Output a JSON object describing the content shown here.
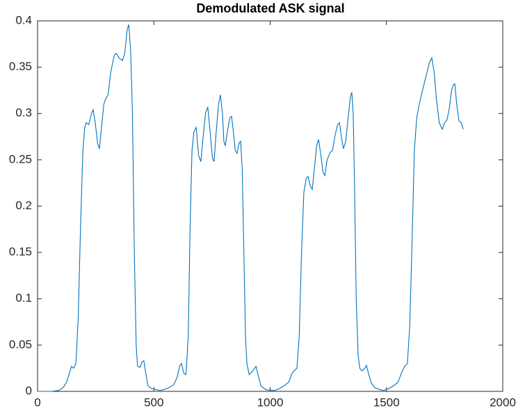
{
  "chart_data": {
    "type": "line",
    "title": "Demodulated ASK signal",
    "x": [
      0,
      60,
      90,
      110,
      125,
      140,
      146,
      155,
      165,
      175,
      185,
      195,
      203,
      209,
      220,
      232,
      239,
      248,
      258,
      266,
      275,
      285,
      293,
      303,
      315,
      330,
      338,
      350,
      365,
      375,
      385,
      392,
      400,
      408,
      416,
      424,
      430,
      440,
      450,
      457,
      465,
      475,
      490,
      510,
      526,
      545,
      565,
      585,
      600,
      612,
      619,
      628,
      638,
      648,
      656,
      664,
      672,
      682,
      692,
      702,
      712,
      722,
      732,
      742,
      752,
      759,
      768,
      778,
      786,
      795,
      801,
      807,
      816,
      826,
      834,
      842,
      850,
      858,
      866,
      873,
      880,
      887,
      894,
      900,
      910,
      925,
      939,
      948,
      960,
      980,
      1000,
      1020,
      1040,
      1060,
      1080,
      1095,
      1106,
      1115,
      1125,
      1135,
      1145,
      1155,
      1163,
      1172,
      1181,
      1192,
      1200,
      1208,
      1218,
      1227,
      1235,
      1245,
      1258,
      1268,
      1278,
      1290,
      1298,
      1306,
      1315,
      1325,
      1335,
      1345,
      1351,
      1357,
      1363,
      1370,
      1378,
      1385,
      1395,
      1407,
      1414,
      1422,
      1435,
      1450,
      1470,
      1489,
      1510,
      1530,
      1550,
      1565,
      1578,
      1590,
      1600,
      1610,
      1620,
      1630,
      1641,
      1655,
      1670,
      1685,
      1695,
      1705,
      1715,
      1727,
      1740,
      1750,
      1760,
      1770,
      1780,
      1788,
      1794,
      1802,
      1812,
      1822,
      1830
    ],
    "series": [
      {
        "name": "signal",
        "color": "#0072bd",
        "values": [
          0,
          0,
          0.001,
          0.004,
          0.01,
          0.022,
          0.027,
          0.025,
          0.03,
          0.08,
          0.18,
          0.26,
          0.285,
          0.29,
          0.288,
          0.3,
          0.304,
          0.29,
          0.268,
          0.262,
          0.285,
          0.31,
          0.316,
          0.32,
          0.345,
          0.363,
          0.365,
          0.36,
          0.357,
          0.365,
          0.39,
          0.396,
          0.37,
          0.3,
          0.15,
          0.05,
          0.027,
          0.026,
          0.032,
          0.033,
          0.02,
          0.006,
          0.003,
          0.002,
          0.001,
          0.002,
          0.004,
          0.007,
          0.015,
          0.028,
          0.03,
          0.02,
          0.018,
          0.06,
          0.18,
          0.26,
          0.28,
          0.285,
          0.255,
          0.248,
          0.275,
          0.3,
          0.307,
          0.28,
          0.252,
          0.248,
          0.28,
          0.31,
          0.32,
          0.3,
          0.27,
          0.265,
          0.28,
          0.295,
          0.297,
          0.28,
          0.26,
          0.257,
          0.268,
          0.27,
          0.24,
          0.15,
          0.06,
          0.03,
          0.018,
          0.022,
          0.027,
          0.018,
          0.006,
          0.002,
          0.001,
          0.001,
          0.003,
          0.006,
          0.01,
          0.02,
          0.023,
          0.025,
          0.06,
          0.15,
          0.215,
          0.23,
          0.232,
          0.222,
          0.218,
          0.245,
          0.265,
          0.272,
          0.255,
          0.237,
          0.233,
          0.25,
          0.258,
          0.26,
          0.275,
          0.288,
          0.29,
          0.275,
          0.262,
          0.27,
          0.295,
          0.318,
          0.323,
          0.3,
          0.22,
          0.1,
          0.04,
          0.025,
          0.022,
          0.025,
          0.028,
          0.02,
          0.009,
          0.004,
          0.002,
          0.001,
          0.003,
          0.006,
          0.01,
          0.02,
          0.027,
          0.03,
          0.07,
          0.16,
          0.26,
          0.295,
          0.31,
          0.325,
          0.34,
          0.355,
          0.36,
          0.345,
          0.315,
          0.29,
          0.283,
          0.29,
          0.293,
          0.305,
          0.325,
          0.331,
          0.332,
          0.31,
          0.292,
          0.29,
          0.283
        ]
      }
    ],
    "xlim": [
      0,
      2000
    ],
    "xticks": [
      0,
      500,
      1000,
      1500,
      2000
    ],
    "ylim": [
      0,
      0.4
    ],
    "yticks": [
      0,
      0.05,
      0.1,
      0.15,
      0.2,
      0.25,
      0.3,
      0.35,
      0.4
    ]
  }
}
